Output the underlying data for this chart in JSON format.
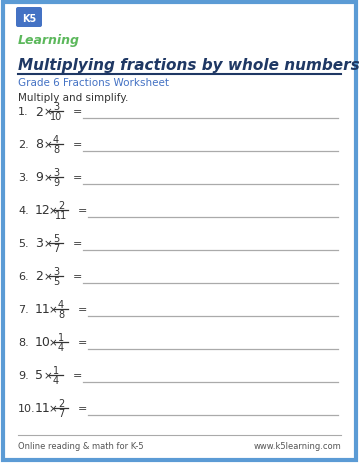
{
  "title": "Multiplying fractions by whole numbers",
  "subtitle": "Grade 6 Fractions Worksheet",
  "instruction": "Multiply and simplify.",
  "footer_left": "Online reading & math for K-5",
  "footer_right": "www.k5learning.com",
  "bg_color": "#ffffff",
  "border_color": "#5b9bd5",
  "title_color": "#1f3864",
  "subtitle_color": "#4472c4",
  "text_color": "#333333",
  "line_color": "#aaaaaa",
  "problems": [
    {
      "num": 1,
      "whole": "2",
      "numer": "3",
      "denom": "10"
    },
    {
      "num": 2,
      "whole": "8",
      "numer": "4",
      "denom": "8"
    },
    {
      "num": 3,
      "whole": "9",
      "numer": "3",
      "denom": "9"
    },
    {
      "num": 4,
      "whole": "12",
      "numer": "2",
      "denom": "11"
    },
    {
      "num": 5,
      "whole": "3",
      "numer": "5",
      "denom": "7"
    },
    {
      "num": 6,
      "whole": "2",
      "numer": "3",
      "denom": "5"
    },
    {
      "num": 7,
      "whole": "11",
      "numer": "4",
      "denom": "8"
    },
    {
      "num": 8,
      "whole": "10",
      "numer": "1",
      "denom": "4"
    },
    {
      "num": 9,
      "whole": "5",
      "numer": "1",
      "denom": "4"
    },
    {
      "num": 10,
      "whole": "11",
      "numer": "2",
      "denom": "7"
    }
  ]
}
